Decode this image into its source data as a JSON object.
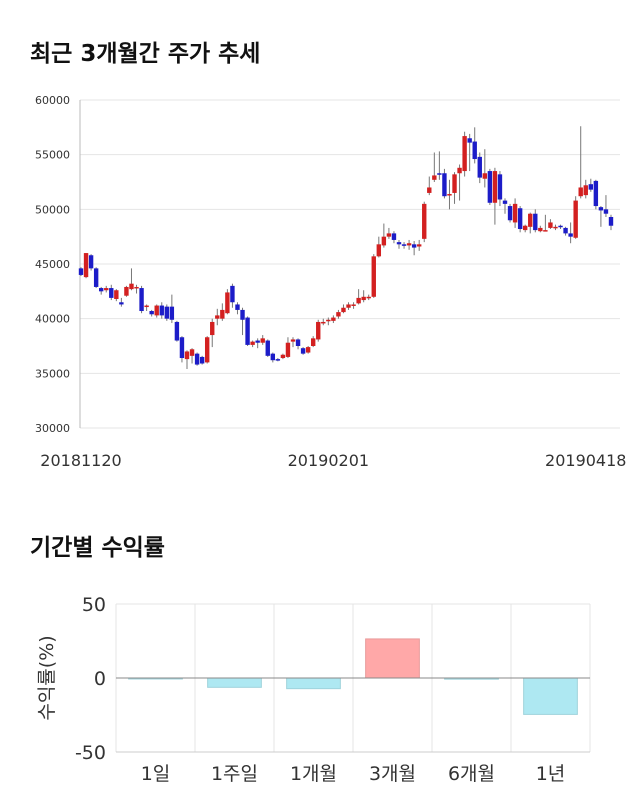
{
  "sections": {
    "price_title": "최근 3개월간 주가 추세",
    "returns_title": "기간별 수익률"
  },
  "colors": {
    "up": "#d32020",
    "down": "#1c1cc8",
    "wick": "#777777",
    "pos_bar": "#ffa8a8",
    "neg_bar": "#aee8f2",
    "grid": "#e4e4e4"
  },
  "chart_data": [
    {
      "type": "candlestick",
      "title": "",
      "ylim": [
        30000,
        60000
      ],
      "y_ticks": [
        30000,
        35000,
        40000,
        45000,
        50000,
        55000,
        60000
      ],
      "y_tick_labels": [
        "30000",
        "35000",
        "40000",
        "45000",
        "50000",
        "55000",
        "60000"
      ],
      "x_ticks": [
        {
          "label": "20181120",
          "index": 0
        },
        {
          "label": "20190201",
          "index": 49
        },
        {
          "label": "20190418",
          "index": 100
        }
      ],
      "candles": [
        [
          44600,
          44000,
          44700,
          43900
        ],
        [
          43800,
          46000,
          46000,
          43700
        ],
        [
          45800,
          44600,
          45900,
          44400
        ],
        [
          44600,
          42900,
          44700,
          42800
        ],
        [
          42800,
          42500,
          42900,
          42200
        ],
        [
          42600,
          42800,
          43000,
          42400
        ],
        [
          42800,
          41900,
          43100,
          41700
        ],
        [
          41800,
          42600,
          42700,
          41600
        ],
        [
          41500,
          41300,
          41900,
          41100
        ],
        [
          42100,
          42900,
          43000,
          42000
        ],
        [
          42700,
          43200,
          44600,
          42600
        ],
        [
          42800,
          42900,
          43100,
          42300
        ],
        [
          42800,
          40700,
          43000,
          40500
        ],
        [
          41100,
          41200,
          41300,
          40700
        ],
        [
          40700,
          40400,
          40800,
          40200
        ],
        [
          40300,
          41200,
          41300,
          40100
        ],
        [
          41200,
          40300,
          41500,
          40000
        ],
        [
          41100,
          40000,
          41300,
          39800
        ],
        [
          41100,
          39900,
          42200,
          39600
        ],
        [
          39700,
          38000,
          39800,
          37900
        ],
        [
          38300,
          36400,
          38400,
          36000
        ],
        [
          36300,
          37000,
          37100,
          35400
        ],
        [
          36600,
          37200,
          37300,
          35900
        ],
        [
          36800,
          35800,
          36900,
          35700
        ],
        [
          36500,
          35900,
          36600,
          35800
        ],
        [
          36000,
          38300,
          38400,
          35900
        ],
        [
          38500,
          39700,
          40000,
          37400
        ],
        [
          40000,
          40300,
          40900,
          39400
        ],
        [
          40000,
          40800,
          41400,
          39800
        ],
        [
          40500,
          42400,
          42700,
          40400
        ],
        [
          43000,
          41500,
          43200,
          41000
        ],
        [
          41300,
          40800,
          41500,
          40400
        ],
        [
          40800,
          39900,
          41000,
          38500
        ],
        [
          40100,
          37600,
          40200,
          37500
        ],
        [
          37600,
          37900,
          38000,
          37400
        ],
        [
          38000,
          37800,
          38200,
          37300
        ],
        [
          37800,
          38200,
          38500,
          37600
        ],
        [
          38000,
          36600,
          38100,
          36500
        ],
        [
          36800,
          36200,
          36900,
          36000
        ],
        [
          36300,
          36200,
          36400,
          36100
        ],
        [
          36400,
          36700,
          36800,
          36300
        ],
        [
          36500,
          37800,
          38300,
          36400
        ],
        [
          37900,
          38100,
          38300,
          37400
        ],
        [
          38100,
          37500,
          38200,
          37200
        ],
        [
          37300,
          36800,
          37400,
          36700
        ],
        [
          36900,
          37400,
          37500,
          36800
        ],
        [
          37500,
          38200,
          38400,
          37400
        ],
        [
          38100,
          39700,
          39900,
          37900
        ],
        [
          39700,
          39700,
          40000,
          39400
        ],
        [
          39900,
          39900,
          40100,
          39400
        ],
        [
          39800,
          40100,
          40300,
          39600
        ],
        [
          40200,
          40600,
          40800,
          40000
        ],
        [
          40600,
          41000,
          41300,
          40500
        ],
        [
          41000,
          41300,
          41500,
          40800
        ],
        [
          41200,
          41300,
          41500,
          40900
        ],
        [
          41400,
          41900,
          42700,
          41300
        ],
        [
          41700,
          42000,
          42600,
          41500
        ],
        [
          42000,
          42000,
          42200,
          41700
        ],
        [
          42000,
          45700,
          45900,
          41900
        ],
        [
          45700,
          46800,
          47500,
          45600
        ],
        [
          46700,
          47500,
          48700,
          46500
        ],
        [
          47500,
          47800,
          48300,
          47300
        ],
        [
          47800,
          47200,
          48000,
          46900
        ],
        [
          47000,
          46800,
          47200,
          46400
        ],
        [
          46800,
          46700,
          47000,
          46400
        ],
        [
          46700,
          46900,
          47200,
          46300
        ],
        [
          46800,
          46500,
          47100,
          45800
        ],
        [
          46600,
          46800,
          47200,
          46200
        ],
        [
          47300,
          50500,
          50700,
          47000
        ],
        [
          51500,
          52000,
          53000,
          51300
        ],
        [
          52700,
          53100,
          55200,
          52500
        ],
        [
          53300,
          53200,
          55300,
          52700
        ],
        [
          53300,
          51200,
          53700,
          51000
        ],
        [
          51300,
          51400,
          52700,
          50000
        ],
        [
          51500,
          53200,
          53400,
          50500
        ],
        [
          53300,
          53800,
          54100,
          50800
        ],
        [
          53500,
          56700,
          57100,
          53000
        ],
        [
          56500,
          56100,
          56900,
          53500
        ],
        [
          56200,
          54600,
          57500,
          54200
        ],
        [
          54800,
          52900,
          55200,
          52400
        ],
        [
          52800,
          53300,
          55500,
          52000
        ],
        [
          53500,
          50600,
          53700,
          50400
        ],
        [
          50600,
          53500,
          53800,
          48600
        ],
        [
          53200,
          50900,
          53500,
          50300
        ],
        [
          50800,
          50500,
          51000,
          49600
        ],
        [
          50300,
          49000,
          50500,
          48800
        ],
        [
          48800,
          50500,
          51000,
          48300
        ],
        [
          50100,
          48200,
          50300,
          47900
        ],
        [
          48100,
          48500,
          48600,
          47900
        ],
        [
          48400,
          49600,
          49700,
          47800
        ],
        [
          49600,
          48100,
          50000,
          47900
        ],
        [
          48000,
          48300,
          48500,
          47900
        ],
        [
          48100,
          48100,
          49500,
          48000
        ],
        [
          48300,
          48800,
          49100,
          48200
        ],
        [
          48300,
          48400,
          48600,
          48100
        ],
        [
          48500,
          48400,
          48600,
          48200
        ],
        [
          48300,
          47800,
          48400,
          47600
        ],
        [
          47800,
          47500,
          48800,
          46900
        ],
        [
          47400,
          50800,
          51200,
          47300
        ],
        [
          51200,
          52000,
          57600,
          51000
        ],
        [
          51300,
          52200,
          52700,
          51000
        ],
        [
          52300,
          51800,
          52800,
          51600
        ],
        [
          52600,
          50300,
          52700,
          50000
        ],
        [
          50200,
          49900,
          50300,
          48400
        ],
        [
          50000,
          49600,
          51300,
          49300
        ],
        [
          49300,
          48500,
          49500,
          48100
        ]
      ]
    },
    {
      "type": "bar",
      "title": "",
      "ylabel": "수익률(%)",
      "ylim": [
        -50,
        50
      ],
      "y_ticks": [
        50,
        0,
        -50
      ],
      "y_tick_labels": [
        "50",
        "0",
        "-50"
      ],
      "categories": [
        "1일",
        "1주일",
        "1개월",
        "3개월",
        "6개월",
        "1년"
      ],
      "values": [
        -0.6,
        -6.3,
        -7.2,
        26.4,
        -0.8,
        -24.6
      ]
    }
  ]
}
